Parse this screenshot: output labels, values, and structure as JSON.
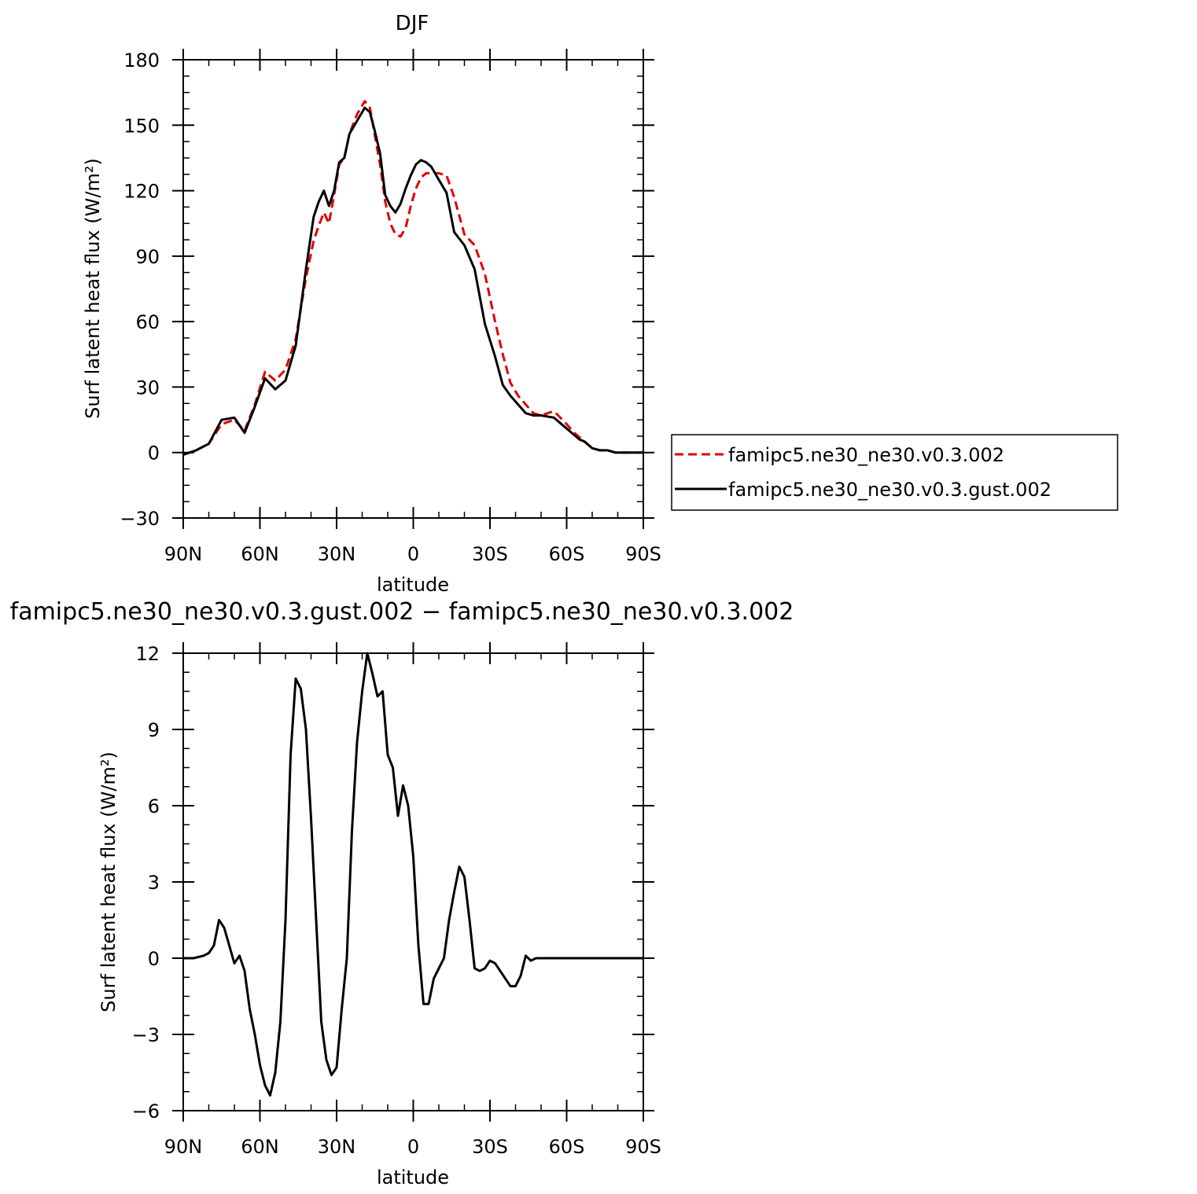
{
  "colors": {
    "control": "#e00000",
    "test": "#000000"
  },
  "legend": {
    "entries": [
      "famipc5.ne30_ne30.v0.3.002",
      "famipc5.ne30_ne30.v0.3.gust.002"
    ]
  },
  "chart_data": [
    {
      "type": "line",
      "title": "DJF",
      "xlabel": "latitude",
      "ylabel": "Surf latent heat flux (W/m²)",
      "x_ticks": [
        "90N",
        "60N",
        "30N",
        "0",
        "30S",
        "60S",
        "90S"
      ],
      "y_ticks": [
        "−30",
        "0",
        "30",
        "60",
        "90",
        "120",
        "150",
        "180"
      ],
      "xlim": [
        90,
        -90
      ],
      "ylim": [
        -30,
        180
      ],
      "legend_position": "right",
      "series": [
        {
          "name": "famipc5.ne30_ne30.v0.3.002",
          "style": "dashed",
          "x": [
            90,
            85,
            80,
            75,
            70,
            66,
            62,
            58,
            54,
            50,
            46,
            42,
            39,
            37,
            35,
            33,
            31,
            29,
            27,
            25,
            22,
            19,
            17,
            15,
            13,
            11,
            9,
            7,
            5,
            3,
            1,
            -1,
            -3,
            -5,
            -7,
            -10,
            -13,
            -16,
            -20,
            -24,
            -28,
            -32,
            -35,
            -38,
            -41,
            -44,
            -47,
            -50,
            -55,
            -60,
            -63,
            -65,
            -67,
            -70,
            -73,
            -76,
            -79,
            -82,
            -85,
            -88,
            -90
          ],
          "y": [
            -1,
            1,
            4,
            13,
            15,
            10,
            22,
            37,
            33,
            38,
            52,
            80,
            97,
            104,
            110,
            105,
            118,
            132,
            135,
            146,
            155,
            161,
            158,
            145,
            132,
            115,
            105,
            100,
            99,
            103,
            113,
            121,
            126,
            128,
            128,
            128,
            127,
            117,
            100,
            95,
            82,
            60,
            45,
            32,
            26,
            22,
            18,
            17,
            19,
            13,
            9,
            7,
            5,
            2,
            1,
            1,
            0,
            0,
            0,
            0,
            0
          ]
        },
        {
          "name": "famipc5.ne30_ne30.v0.3.gust.002",
          "style": "solid",
          "x": [
            90,
            85,
            80,
            75,
            70,
            66,
            62,
            58,
            54,
            50,
            46,
            42,
            39,
            37,
            35,
            33,
            31,
            29,
            27,
            25,
            22,
            19,
            17,
            15,
            13,
            11,
            9,
            7,
            5,
            3,
            1,
            -1,
            -3,
            -5,
            -7,
            -10,
            -13,
            -16,
            -20,
            -24,
            -28,
            -32,
            -35,
            -38,
            -41,
            -44,
            -47,
            -50,
            -55,
            -60,
            -63,
            -65,
            -67,
            -70,
            -73,
            -76,
            -79,
            -82,
            -85,
            -88,
            -90
          ],
          "y": [
            -1,
            1,
            4,
            15,
            16,
            9,
            21,
            34,
            29,
            33,
            49,
            84,
            108,
            115,
            120,
            113,
            120,
            133,
            135,
            146,
            152,
            158,
            156,
            147,
            137,
            118,
            113,
            110,
            114,
            121,
            127,
            132,
            134,
            133,
            131,
            125,
            119,
            101,
            95,
            84,
            59,
            44,
            31,
            26,
            22,
            18,
            17,
            17,
            16,
            11,
            8,
            6,
            5,
            2,
            1,
            1,
            0,
            0,
            0,
            0,
            0
          ]
        }
      ]
    },
    {
      "type": "line",
      "title": "famipc5.ne30_ne30.v0.3.gust.002 − famipc5.ne30_ne30.v0.3.002",
      "xlabel": "latitude",
      "ylabel": "Surf latent heat flux (W/m²)",
      "x_ticks": [
        "90N",
        "60N",
        "30N",
        "0",
        "30S",
        "60S",
        "90S"
      ],
      "y_ticks": [
        "−6",
        "−3",
        "0",
        "3",
        "6",
        "9",
        "12"
      ],
      "xlim": [
        90,
        -90
      ],
      "ylim": [
        -6,
        12
      ],
      "series": [
        {
          "style": "solid",
          "x": [
            90,
            86,
            82,
            80,
            78,
            76,
            74,
            72,
            70,
            68,
            66,
            64,
            62,
            60,
            58,
            56,
            54,
            52,
            50,
            48,
            46,
            44,
            42,
            40,
            38,
            36,
            34,
            32,
            30,
            28,
            26,
            24,
            22,
            20,
            18,
            16,
            14,
            12,
            10,
            8,
            6,
            4,
            2,
            0,
            -2,
            -4,
            -6,
            -8,
            -10,
            -12,
            -14,
            -16,
            -18,
            -20,
            -22,
            -24,
            -26,
            -28,
            -30,
            -32,
            -34,
            -36,
            -38,
            -40,
            -42,
            -44,
            -46,
            -48,
            -50,
            -52,
            -54,
            -56,
            -58,
            -60,
            -62,
            -64,
            -66,
            -68,
            -70,
            -72,
            -74,
            -76,
            -80,
            -84,
            -88,
            -90
          ],
          "y": [
            0,
            0,
            0.1,
            0.2,
            0.5,
            1.5,
            1.2,
            0.5,
            -0.2,
            0.1,
            -0.5,
            -2.0,
            -3.0,
            -4.2,
            -5.0,
            -5.4,
            -4.5,
            -2.5,
            1.5,
            8.0,
            11.0,
            10.6,
            9.0,
            5.5,
            1.5,
            -2.5,
            -4.0,
            -4.6,
            -4.3,
            -2.0,
            0,
            5.0,
            8.5,
            10.5,
            12.0,
            11.2,
            10.3,
            10.5,
            8.0,
            7.5,
            5.6,
            6.8,
            6.0,
            4.0,
            0.5,
            -1.8,
            -1.8,
            -0.8,
            -0.4,
            0,
            1.5,
            2.6,
            3.6,
            3.2,
            1.5,
            -0.4,
            -0.5,
            -0.4,
            -0.1,
            -0.2,
            -0.5,
            -0.8,
            -1.1,
            -1.1,
            -0.7,
            0.1,
            -0.1,
            0,
            0,
            0,
            0,
            0,
            0,
            0,
            0,
            0,
            0,
            0,
            0,
            0,
            0,
            0,
            0,
            0,
            0,
            0
          ]
        }
      ]
    }
  ]
}
